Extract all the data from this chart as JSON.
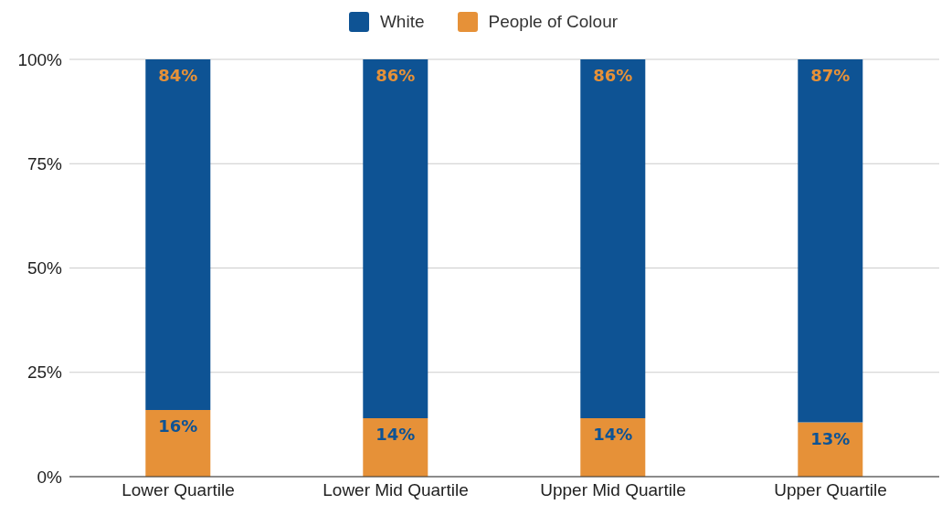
{
  "chart_data": {
    "type": "bar",
    "stacked": true,
    "categories": [
      "Lower Quartile",
      "Lower Mid Quartile",
      "Upper Mid Quartile",
      "Upper Quartile"
    ],
    "series": [
      {
        "name": "People of Colour",
        "color": "#e69138",
        "values": [
          16,
          14,
          14,
          13
        ],
        "value_labels": [
          "16%",
          "14%",
          "14%",
          "13%"
        ]
      },
      {
        "name": "White",
        "color": "#0e5394",
        "values": [
          84,
          86,
          86,
          87
        ],
        "value_labels": [
          "84%",
          "86%",
          "86%",
          "87%"
        ]
      }
    ],
    "ylim": [
      0,
      100
    ],
    "yticks": [
      {
        "value": 0,
        "label": "0%"
      },
      {
        "value": 25,
        "label": "25%"
      },
      {
        "value": 50,
        "label": "50%"
      },
      {
        "value": 75,
        "label": "75%"
      },
      {
        "value": 100,
        "label": "100%"
      }
    ],
    "grid": "y",
    "legend": "top"
  }
}
